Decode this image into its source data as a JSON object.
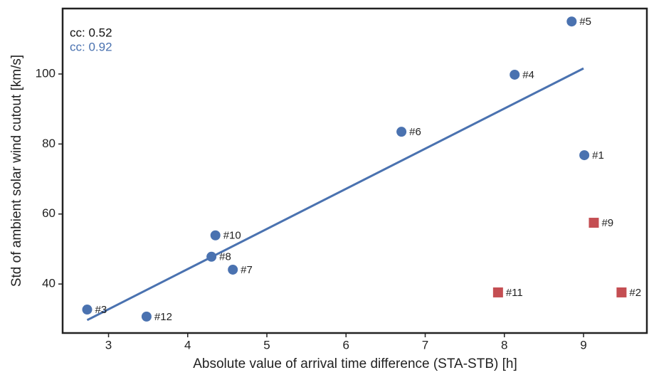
{
  "chart_data": {
    "type": "scatter",
    "x_label": "Absolute value of arrival time difference (STA-STB) [h]",
    "y_label": "Std of ambient solar wind cutout [km/s]",
    "xlim": [
      2.42,
      9.8
    ],
    "ylim": [
      26,
      118.7
    ],
    "xticks": [
      3,
      4,
      5,
      6,
      7,
      8,
      9
    ],
    "yticks": [
      40,
      60,
      80,
      100
    ],
    "grid": false,
    "annotations": [
      {
        "text": "cc: 0.52",
        "color": "#111111"
      },
      {
        "text": "cc: 0.92",
        "color": "#4a72b0"
      }
    ],
    "series": [
      {
        "color": "#4a72b0",
        "marker": "circle",
        "x": [
          8.85,
          8.13,
          6.7,
          9.01,
          4.35,
          4.3,
          4.57,
          2.73,
          3.48
        ],
        "values": [
          115.0,
          99.8,
          83.5,
          76.8,
          53.9,
          47.8,
          44.1,
          32.7,
          30.7
        ],
        "labels": [
          "#5",
          "#4",
          "#6",
          "#1",
          "#10",
          "#8",
          "#7",
          "#3",
          "#12"
        ]
      },
      {
        "color": "#c44e52",
        "marker": "square",
        "x": [
          9.13,
          7.92,
          9.48
        ],
        "values": [
          57.5,
          37.6,
          37.6
        ],
        "labels": [
          "#9",
          "#11",
          "#2"
        ]
      }
    ],
    "fit_line": {
      "color": "#4a72b0",
      "x": [
        2.73,
        9.0
      ],
      "y": [
        29.7,
        101.6
      ]
    }
  }
}
